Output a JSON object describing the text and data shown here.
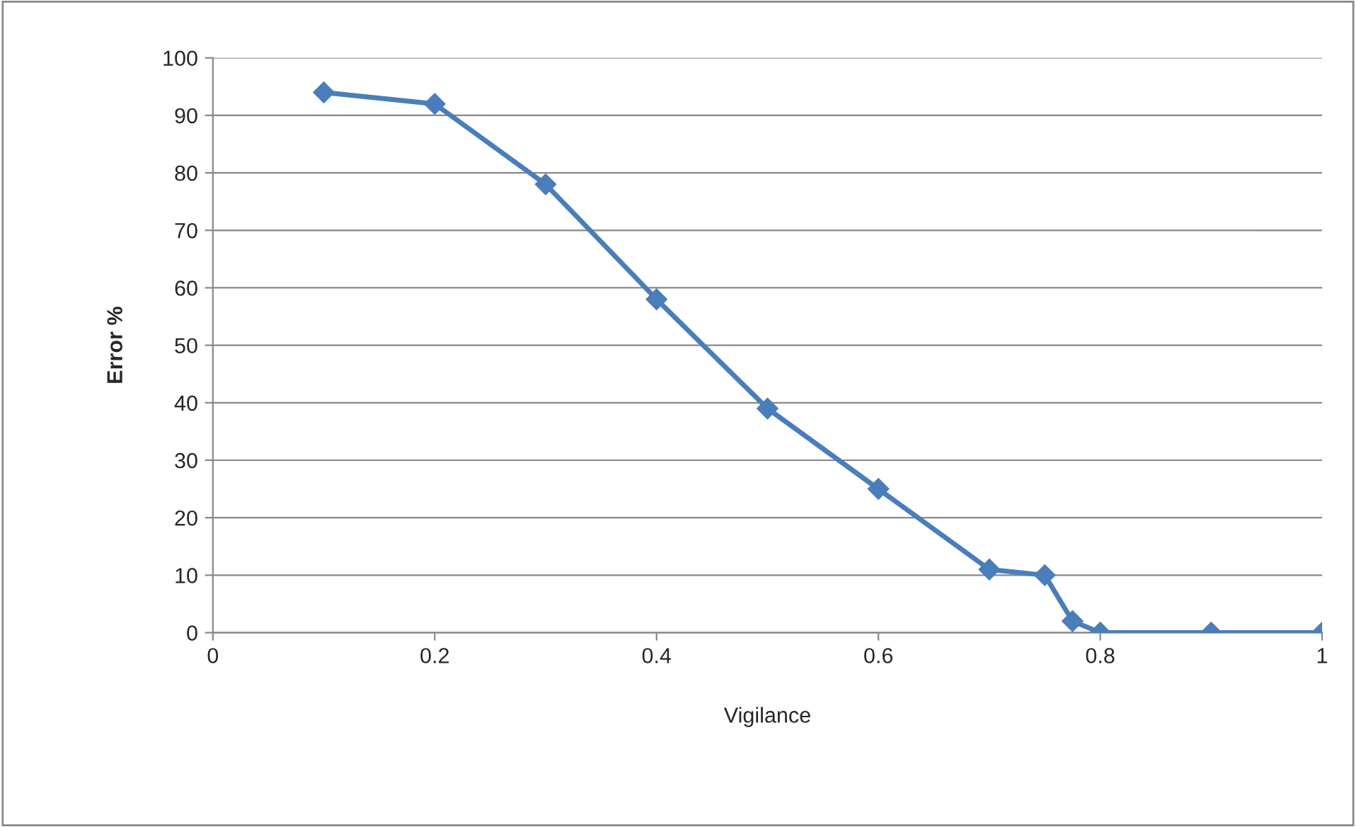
{
  "chart_data": {
    "type": "line",
    "xlabel": "Vigilance",
    "ylabel": "Error %",
    "series": [
      {
        "color": "#4a7ebb",
        "x": [
          0.1,
          0.2,
          0.3,
          0.4,
          0.5,
          0.6,
          0.7,
          0.75,
          0.775,
          0.8,
          0.9,
          1
        ],
        "values": [
          94,
          92,
          78,
          58,
          39,
          25,
          11,
          10,
          2,
          0,
          0,
          0
        ]
      }
    ],
    "xlim": [
      0,
      1
    ],
    "xticks": [
      0,
      0.2,
      0.4,
      0.6,
      0.8,
      1
    ],
    "ylim": [
      0,
      100
    ],
    "yticks": [
      0,
      10,
      20,
      30,
      40,
      50,
      60,
      70,
      80,
      90,
      100
    ],
    "grid": "y",
    "marker": "diamond",
    "line_style": "solid",
    "legend": false
  }
}
